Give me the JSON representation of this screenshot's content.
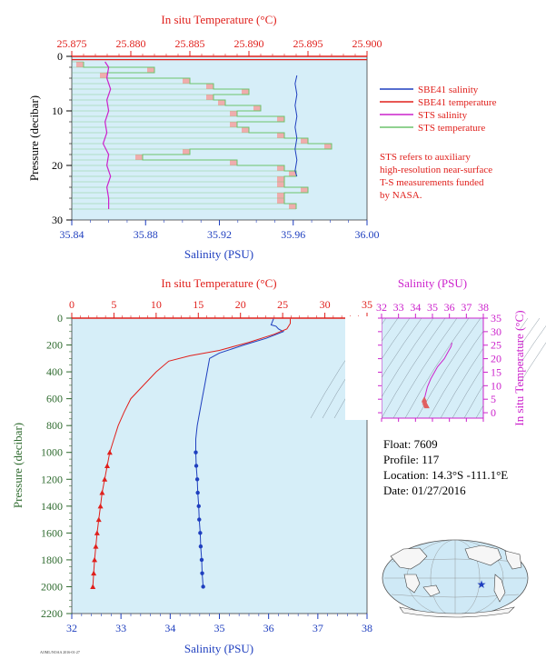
{
  "colors": {
    "plot_bg": "#d6eef8",
    "salinity": "#1f3fbf",
    "temperature": "#e0201c",
    "sts_salinity": "#cc22cc",
    "sts_temperature": "#6cc46c",
    "sts_temperature_fill": "#f3a4a4",
    "pressure_axis": "#2f6b2f",
    "ts_axis": "#cc22cc"
  },
  "top_chart": {
    "top_axis_title": "In situ Temperature (°C)",
    "bottom_axis_title": "Salinity (PSU)",
    "left_axis_title": "Pressure (decibar)",
    "temp_ticks": [
      "25.875",
      "25.880",
      "25.885",
      "25.890",
      "25.895",
      "25.900"
    ],
    "sal_ticks": [
      "35.84",
      "35.88",
      "35.92",
      "35.96",
      "36.00"
    ],
    "pressure_ticks": [
      "0",
      "10",
      "20",
      "30"
    ],
    "legend": [
      {
        "label": "SBE41 salinity",
        "color": "#1f3fbf"
      },
      {
        "label": "SBE41 temperature",
        "color": "#e0201c"
      },
      {
        "label": "STS salinity",
        "color": "#cc22cc"
      },
      {
        "label": "STS temperature",
        "color": "#6cc46c"
      }
    ],
    "note_lines": [
      "STS refers to auxiliary",
      "high-resolution near-surface",
      "T-S measurements funded",
      "by NASA."
    ]
  },
  "main_chart": {
    "top_axis_title": "In situ Temperature (°C)",
    "bottom_axis_title": "Salinity (PSU)",
    "left_axis_title": "Pressure (decibar)",
    "temp_ticks": [
      "0",
      "5",
      "10",
      "15",
      "20",
      "25",
      "30",
      "35"
    ],
    "sal_ticks": [
      "32",
      "33",
      "34",
      "35",
      "36",
      "37",
      "38"
    ],
    "pressure_ticks": [
      "0",
      "200",
      "400",
      "600",
      "800",
      "1000",
      "1200",
      "1400",
      "1600",
      "1800",
      "2000",
      "2200"
    ]
  },
  "ts_chart": {
    "top_axis_title": "Salinity (PSU)",
    "right_axis_title": "In situ Temperature (°C)",
    "sal_ticks": [
      "32",
      "33",
      "34",
      "35",
      "36",
      "37",
      "38"
    ],
    "temp_ticks": [
      "0",
      "5",
      "10",
      "15",
      "20",
      "25",
      "30",
      "35"
    ]
  },
  "info": {
    "float": "Float:  7609",
    "profile": "Profile:  117",
    "location": "Location:  14.3°S  -111.1°E",
    "date": "Date:  01/27/2016"
  },
  "chart_data": [
    {
      "type": "line",
      "title": "",
      "xlabel": "Salinity (PSU)",
      "x2label": "In situ Temperature (°C)",
      "ylabel": "Pressure (decibar)",
      "xlim": [
        35.84,
        36.0
      ],
      "x2lim": [
        25.875,
        25.9
      ],
      "ylim": [
        30,
        0
      ],
      "series": [
        {
          "name": "SBE41 salinity",
          "axis": "salinity",
          "points": [
            [
              35.962,
              3.5
            ],
            [
              35.961,
              5
            ],
            [
              35.962,
              7
            ],
            [
              35.961,
              9
            ],
            [
              35.962,
              11
            ],
            [
              35.961,
              13
            ],
            [
              35.962,
              15
            ],
            [
              35.961,
              17
            ],
            [
              35.962,
              19
            ],
            [
              35.961,
              21
            ],
            [
              35.962,
              22
            ]
          ]
        },
        {
          "name": "SBE41 temperature",
          "axis": "temperature",
          "points": [
            [
              25.875,
              0.6
            ],
            [
              25.9,
              0.6
            ]
          ]
        },
        {
          "name": "STS salinity",
          "axis": "salinity",
          "points": [
            [
              35.858,
              1
            ],
            [
              35.86,
              2
            ],
            [
              35.859,
              4
            ],
            [
              35.861,
              6
            ],
            [
              35.859,
              8
            ],
            [
              35.86,
              10
            ],
            [
              35.858,
              12
            ],
            [
              35.859,
              14
            ],
            [
              35.857,
              16
            ],
            [
              35.86,
              18
            ],
            [
              35.859,
              20
            ],
            [
              35.861,
              22
            ],
            [
              35.859,
              24
            ],
            [
              35.86,
              26
            ],
            [
              35.86,
              28
            ]
          ]
        },
        {
          "name": "STS temperature",
          "axis": "temperature",
          "points": [
            [
              25.876,
              1
            ],
            [
              25.882,
              2
            ],
            [
              25.878,
              3
            ],
            [
              25.885,
              4
            ],
            [
              25.887,
              5
            ],
            [
              25.89,
              6
            ],
            [
              25.887,
              7
            ],
            [
              25.888,
              8
            ],
            [
              25.891,
              9
            ],
            [
              25.889,
              10
            ],
            [
              25.893,
              11
            ],
            [
              25.889,
              12
            ],
            [
              25.89,
              13
            ],
            [
              25.893,
              14
            ],
            [
              25.895,
              15
            ],
            [
              25.897,
              16
            ],
            [
              25.885,
              17
            ],
            [
              25.881,
              18
            ],
            [
              25.889,
              19
            ],
            [
              25.893,
              20
            ],
            [
              25.894,
              21
            ],
            [
              25.893,
              22
            ],
            [
              25.893,
              23
            ],
            [
              25.895,
              24
            ],
            [
              25.893,
              25
            ],
            [
              25.893,
              26
            ],
            [
              25.894,
              27
            ],
            [
              25.894,
              28
            ]
          ]
        }
      ]
    },
    {
      "type": "line",
      "title": "",
      "xlabel": "Salinity (PSU)",
      "x2label": "In situ Temperature (°C)",
      "ylabel": "Pressure (decibar)",
      "xlim": [
        32,
        38
      ],
      "x2lim": [
        0,
        35
      ],
      "ylim": [
        2200,
        0
      ],
      "series": [
        {
          "name": "Salinity",
          "axis": "salinity",
          "marker": "circle",
          "points": [
            [
              36.1,
              5
            ],
            [
              36.05,
              50
            ],
            [
              36.15,
              60
            ],
            [
              36.2,
              80
            ],
            [
              36.3,
              100
            ],
            [
              35.95,
              150
            ],
            [
              35.5,
              200
            ],
            [
              35.0,
              260
            ],
            [
              34.8,
              300
            ],
            [
              34.75,
              400
            ],
            [
              34.7,
              500
            ],
            [
              34.65,
              600
            ],
            [
              34.6,
              700
            ],
            [
              34.55,
              800
            ],
            [
              34.52,
              900
            ],
            [
              34.52,
              1000
            ],
            [
              34.53,
              1100
            ],
            [
              34.55,
              1200
            ],
            [
              34.56,
              1300
            ],
            [
              34.58,
              1400
            ],
            [
              34.59,
              1500
            ],
            [
              34.61,
              1600
            ],
            [
              34.62,
              1700
            ],
            [
              34.64,
              1800
            ],
            [
              34.65,
              1900
            ],
            [
              34.67,
              2000
            ]
          ]
        },
        {
          "name": "Temperature",
          "axis": "temperature",
          "marker": "triangle",
          "points": [
            [
              25.9,
              5
            ],
            [
              25.9,
              40
            ],
            [
              25.5,
              80
            ],
            [
              24.0,
              120
            ],
            [
              21.0,
              180
            ],
            [
              17.5,
              240
            ],
            [
              14.0,
              280
            ],
            [
              11.5,
              320
            ],
            [
              10.0,
              400
            ],
            [
              8.5,
              500
            ],
            [
              7.0,
              600
            ],
            [
              6.2,
              700
            ],
            [
              5.5,
              800
            ],
            [
              5.0,
              900
            ],
            [
              4.5,
              1000
            ],
            [
              4.2,
              1100
            ],
            [
              3.9,
              1200
            ],
            [
              3.6,
              1300
            ],
            [
              3.4,
              1400
            ],
            [
              3.2,
              1500
            ],
            [
              3.0,
              1600
            ],
            [
              2.85,
              1700
            ],
            [
              2.7,
              1800
            ],
            [
              2.6,
              1900
            ],
            [
              2.5,
              2000
            ]
          ]
        }
      ]
    },
    {
      "type": "line",
      "title": "",
      "xlabel": "Salinity (PSU)",
      "ylabel": "In situ Temperature (°C)",
      "xlim": [
        32,
        38
      ],
      "ylim": [
        -2,
        35
      ],
      "series": [
        {
          "name": "T-S",
          "marker": "triangle",
          "points": [
            [
              36.15,
              25.9
            ],
            [
              36.1,
              24.5
            ],
            [
              35.7,
              20.0
            ],
            [
              35.3,
              17.0
            ],
            [
              34.9,
              12.5
            ],
            [
              34.7,
              9.5
            ],
            [
              34.6,
              7.0
            ],
            [
              34.52,
              5.0
            ],
            [
              34.52,
              4.5
            ],
            [
              34.55,
              3.9
            ],
            [
              34.58,
              3.4
            ],
            [
              34.62,
              3.0
            ],
            [
              34.65,
              2.7
            ],
            [
              34.67,
              2.5
            ]
          ]
        }
      ]
    }
  ]
}
